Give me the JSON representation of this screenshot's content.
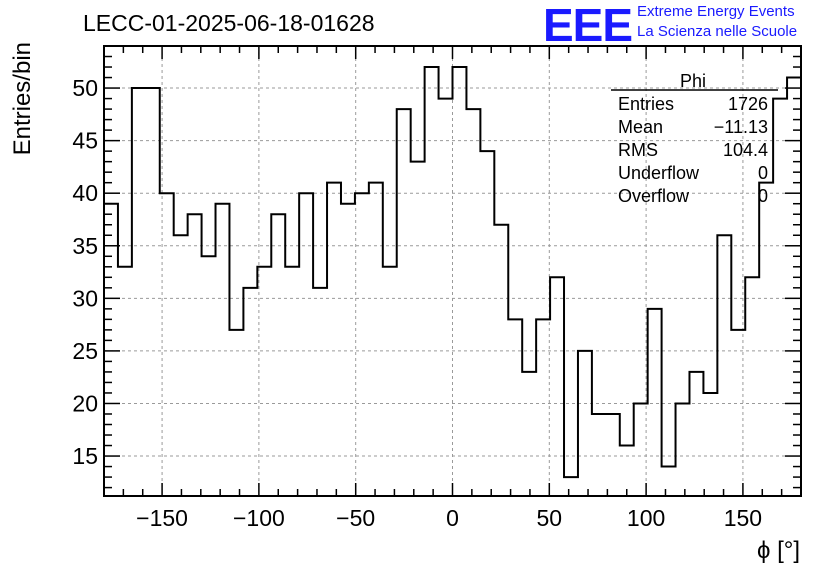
{
  "header": {
    "title": "LECC-01-2025-06-18-01628",
    "logo_text": "EEE",
    "logo_line1": "Extreme Energy Events",
    "logo_line2": "La Scienza nelle Scuole",
    "logo_color": "#1a1aff"
  },
  "stats_box": {
    "name": "Phi",
    "rows": [
      {
        "label": "Entries",
        "value": "1726"
      },
      {
        "label": "Mean",
        "value": "−11.13"
      },
      {
        "label": "RMS",
        "value": "104.4"
      },
      {
        "label": "Underflow",
        "value": "0"
      },
      {
        "label": "Overflow",
        "value": "0"
      }
    ]
  },
  "chart_data": {
    "type": "bar",
    "style": "step-histogram",
    "xlabel": "ϕ [°]",
    "ylabel": "Entries/bin",
    "xlim": [
      -180,
      180
    ],
    "ylim": [
      11.2,
      54
    ],
    "grid": true,
    "bin_width": 7.2,
    "x_ticks": [
      -150,
      -100,
      -50,
      0,
      50,
      100,
      150
    ],
    "x_tick_labels": [
      "−150",
      "−100",
      "−50",
      "0",
      "50",
      "100",
      "150"
    ],
    "y_ticks": [
      15,
      20,
      25,
      30,
      35,
      40,
      45,
      50
    ],
    "y_tick_labels": [
      "15",
      "20",
      "25",
      "30",
      "35",
      "40",
      "45",
      "50"
    ],
    "values": [
      39,
      33,
      50,
      50,
      40,
      36,
      38,
      34,
      39,
      27,
      31,
      33,
      38,
      33,
      40,
      31,
      41,
      39,
      40,
      41,
      33,
      48,
      43,
      52,
      49,
      52,
      48,
      44,
      37,
      28,
      23,
      28,
      32,
      13,
      25,
      19,
      19,
      16,
      20,
      29,
      14,
      20,
      23,
      21,
      36,
      27,
      32,
      41,
      49,
      51
    ],
    "line_color": "#000000",
    "grid_color": "#9a9a9a"
  }
}
